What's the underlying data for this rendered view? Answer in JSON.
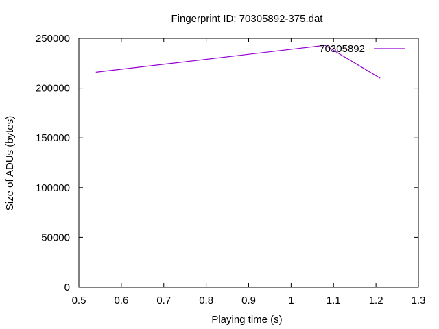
{
  "chart_data": {
    "type": "line",
    "title": "Fingerprint ID: 70305892-375.dat",
    "xlabel": "Playing time (s)",
    "ylabel": "Size of ADUs (bytes)",
    "xlim": [
      0.5,
      1.3
    ],
    "ylim": [
      0,
      250000
    ],
    "x_ticks": [
      "0.5",
      "0.6",
      "0.7",
      "0.8",
      "0.9",
      "1",
      "1.1",
      "1.2",
      "1.3"
    ],
    "y_ticks": [
      "0",
      "50000",
      "100000",
      "150000",
      "200000",
      "250000"
    ],
    "grid": false,
    "legend_position": "top-right",
    "series": [
      {
        "name": "70305892",
        "color": "#9400d3",
        "x": [
          0.54,
          1.08,
          1.21
        ],
        "y": [
          216000,
          243000,
          210000
        ]
      }
    ]
  }
}
